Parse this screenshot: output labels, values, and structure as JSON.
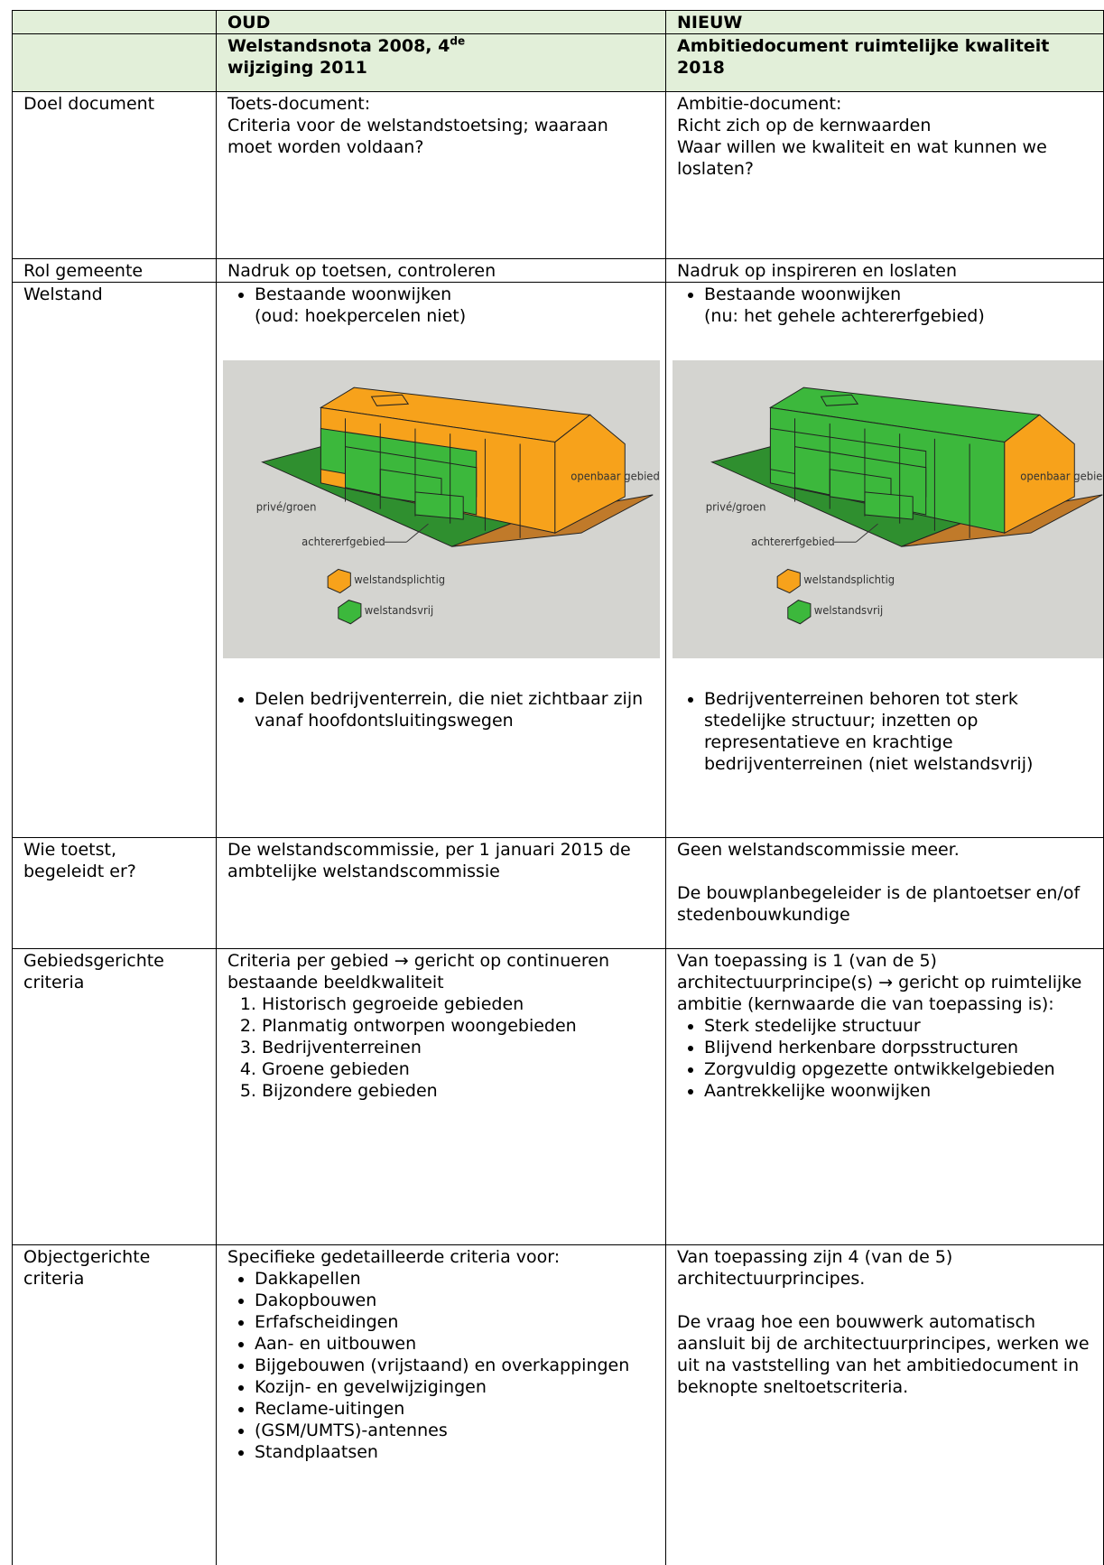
{
  "table": {
    "header": {
      "old": "OUD",
      "new": "NIEUW"
    },
    "subheader": {
      "old": {
        "text": "Welstandsnota 2008, 4",
        "sup": "de",
        "line2": "wijziging 2011"
      },
      "new": {
        "text": "Ambitiedocument ruimtelijke kwaliteit 2018"
      }
    },
    "rows": [
      {
        "label": [
          "Doel document"
        ],
        "old": [
          {
            "lines": [
              "Toets-document:",
              "Criteria voor de welstandstoetsing; waaraan moet worden voldaan?"
            ]
          }
        ],
        "new": [
          {
            "lines": [
              "Ambitie-document:",
              "Richt zich op de kernwaarden",
              "Waar willen we kwaliteit en wat kunnen we loslaten?"
            ]
          }
        ]
      },
      {
        "label": [
          "Rol gemeente"
        ],
        "old": [
          {
            "lines": [
              "Nadruk op toetsen, controleren"
            ]
          }
        ],
        "new": [
          {
            "lines": [
              "Nadruk op inspireren en loslaten"
            ]
          }
        ]
      },
      {
        "label": [
          "Welstand"
        ],
        "old": [
          {
            "bullets": [
              "Bestaande woonwijken"
            ],
            "note": "(oud: hoekpercelen niet)"
          },
          {
            "figure": {
              "public": "openbaar gebied",
              "private": "privé/groen",
              "backyard": "achtererfgebied",
              "required": "welstandsplichtig",
              "free": "welstandsvrij"
            }
          },
          {
            "bullets": [
              "Delen bedrijventerrein, die niet zichtbaar zijn vanaf hoofdontsluitingswegen"
            ]
          }
        ],
        "new": [
          {
            "bullets": [
              "Bestaande woonwijken"
            ],
            "note": "(nu: het gehele achtererfgebied)"
          },
          {
            "figure": {
              "public": "openbaar gebied",
              "private": "privé/groen",
              "backyard": "achtererfgebied",
              "required": "welstandsplichtig",
              "free": "welstandsvrij"
            }
          },
          {
            "bullets": [
              "Bedrijventerreinen behoren tot sterk stedelijke structuur; inzetten op representatieve en krachtige bedrijventerreinen (niet welstandsvrij)"
            ]
          }
        ]
      },
      {
        "label": [
          "Wie toetst,",
          "begeleidt er?"
        ],
        "old": [
          {
            "lines": [
              "De welstandscommissie, per 1 januari 2015 de ambtelijke welstandscommissie"
            ]
          }
        ],
        "new": [
          {
            "lines": [
              "Geen welstandscommissie meer."
            ]
          },
          {
            "lines": [
              "De bouwplanbegeleider is de plantoetser en/of stedenbouwkundige"
            ]
          }
        ]
      },
      {
        "label": [
          "Gebiedsgerichte",
          "criteria"
        ],
        "old": [
          {
            "lines": [
              "Criteria per gebied → gericht op continueren bestaande beeldkwaliteit"
            ]
          },
          {
            "numbered": [
              "Historisch gegroeide gebieden",
              "Planmatig ontworpen woongebieden",
              "Bedrijventerreinen",
              "Groene gebieden",
              "Bijzondere gebieden"
            ]
          }
        ],
        "new": [
          {
            "lines": [
              "Van toepassing is 1 (van de 5) architectuurprincipe(s) → gericht op ruimtelijke ambitie (kernwaarde die van toepassing is):"
            ]
          },
          {
            "bullets": [
              "Sterk stedelijke structuur",
              "Blijvend herkenbare dorpsstructuren",
              "Zorgvuldig opgezette ontwikkelgebieden",
              "Aantrekkelijke woonwijken"
            ]
          }
        ]
      },
      {
        "label": [
          "Objectgerichte",
          "criteria"
        ],
        "old": [
          {
            "lines": [
              "Specifieke gedetailleerde criteria voor:"
            ]
          },
          {
            "bullets": [
              "Dakkapellen",
              "Dakopbouwen",
              "Erfafscheidingen",
              "Aan- en uitbouwen",
              "Bijgebouwen (vrijstaand) en overkappingen",
              "Kozijn- en gevelwijzigingen",
              "Reclame-uitingen",
              "(GSM/UMTS)-antennes",
              "Standplaatsen"
            ]
          }
        ],
        "new": [
          {
            "lines": [
              "Van toepassing zijn 4 (van de 5) architectuurprincipes."
            ]
          },
          {
            "lines": [
              "De vraag hoe een bouwwerk automatisch aansluit bij de architectuurprincipes, werken we uit na vaststelling van het ambitiedocument in beknopte sneltoetscriteria."
            ]
          }
        ]
      }
    ]
  }
}
